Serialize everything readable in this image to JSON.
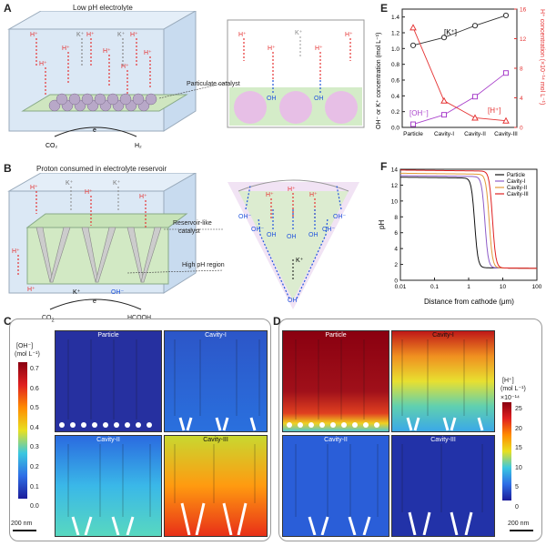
{
  "panels": {
    "a": {
      "label": "A",
      "title": "Low pH electrolyte",
      "catalyst": "Particulate catalyst",
      "co2": "CO",
      "co2_sub": "2",
      "h2": "H",
      "h2_sub": "2",
      "e": "e",
      "h": "H",
      "plus": "+",
      "k": "K",
      "oh": "OH",
      "minus": "−"
    },
    "b": {
      "label": "B",
      "title": "Proton consumed in electrolyte reservoir",
      "catalyst_l1": "Reservoir-like",
      "catalyst_l2": "catalyst",
      "high_ph": "High pH region",
      "co2": "CO",
      "co2_sub": "2",
      "product": "HCOOH",
      "e": "e"
    },
    "c": {
      "label": "C",
      "cb_label_l1": "[OH⁻]",
      "cb_label_l2": "(mol L⁻¹)",
      "cb_ticks": [
        "0.7",
        "0.6",
        "0.5",
        "0.4",
        "0.3",
        "0.2",
        "0.1",
        "0.0"
      ],
      "scale": "200 nm",
      "titles": [
        "Particle",
        "Cavity-I",
        "Cavity-II",
        "Cavity-III"
      ]
    },
    "d": {
      "label": "D",
      "cb_label_l1": "[H⁺]",
      "cb_label_l2": "(mol L⁻¹)",
      "cb_exp": "×10⁻¹⁴",
      "cb_ticks": [
        "25",
        "20",
        "15",
        "10",
        "5",
        "0"
      ],
      "scale": "200 nm",
      "titles": [
        "Particle",
        "Cavity-I",
        "Cavity-II",
        "Cavity-III"
      ]
    },
    "e": {
      "label": "E",
      "k_label": "[K⁺]",
      "oh_label": "[OH⁻]",
      "h_label": "[H⁺]",
      "ylabel_left": "OH⁻ or K⁺ concentration (mol L⁻¹)",
      "ylabel_right": "H⁺ concentration (×10⁻¹⁴ mol L⁻¹)"
    },
    "f": {
      "label": "F",
      "ylabel": "pH",
      "xlabel": "Distance from cathode (μm)"
    }
  },
  "chart_data": [
    {
      "type": "line",
      "panel": "E",
      "categories": [
        "Particle",
        "Cavity-I",
        "Cavity-II",
        "Cavity-III"
      ],
      "ylim_left": [
        0.0,
        1.5
      ],
      "yticks_left": [
        "0.0",
        "0.2",
        "0.4",
        "0.6",
        "0.8",
        "1.0",
        "1.2",
        "1.4"
      ],
      "ylim_right": [
        0,
        16
      ],
      "yticks_right": [
        "0",
        "4",
        "8",
        "12",
        "16"
      ],
      "series": [
        {
          "name": "[K⁺]",
          "axis": "left",
          "color": "#333333",
          "marker": "circle",
          "values": [
            1.04,
            1.14,
            1.29,
            1.42
          ]
        },
        {
          "name": "[OH⁻]",
          "axis": "left",
          "color": "#aa44cc",
          "marker": "square",
          "values": [
            0.04,
            0.16,
            0.39,
            0.69
          ]
        },
        {
          "name": "[H⁺]",
          "axis": "right",
          "color": "#e53333",
          "marker": "triangle",
          "values": [
            13.5,
            3.6,
            1.3,
            0.9
          ]
        }
      ]
    },
    {
      "type": "line",
      "panel": "F",
      "xscale": "log",
      "xlim": [
        0.01,
        100
      ],
      "xticks": [
        "0.01",
        "0.1",
        "1",
        "10",
        "100"
      ],
      "ylim": [
        0,
        14
      ],
      "yticks": [
        "0",
        "2",
        "4",
        "6",
        "8",
        "10",
        "12",
        "14"
      ],
      "legend_position": "top-right",
      "series": [
        {
          "name": "Particle",
          "color": "#111111",
          "plateau": 12.9,
          "transition": 1.5,
          "floor": 1.6
        },
        {
          "name": "Cavity-I",
          "color": "#8e5cc8",
          "plateau": 13.1,
          "transition": 3.0,
          "floor": 1.6
        },
        {
          "name": "Cavity-II",
          "color": "#e39a3a",
          "plateau": 13.4,
          "transition": 4.0,
          "floor": 1.6
        },
        {
          "name": "Cavity-III",
          "color": "#e02020",
          "plateau": 13.8,
          "transition": 5.0,
          "floor": 1.6
        }
      ]
    }
  ]
}
